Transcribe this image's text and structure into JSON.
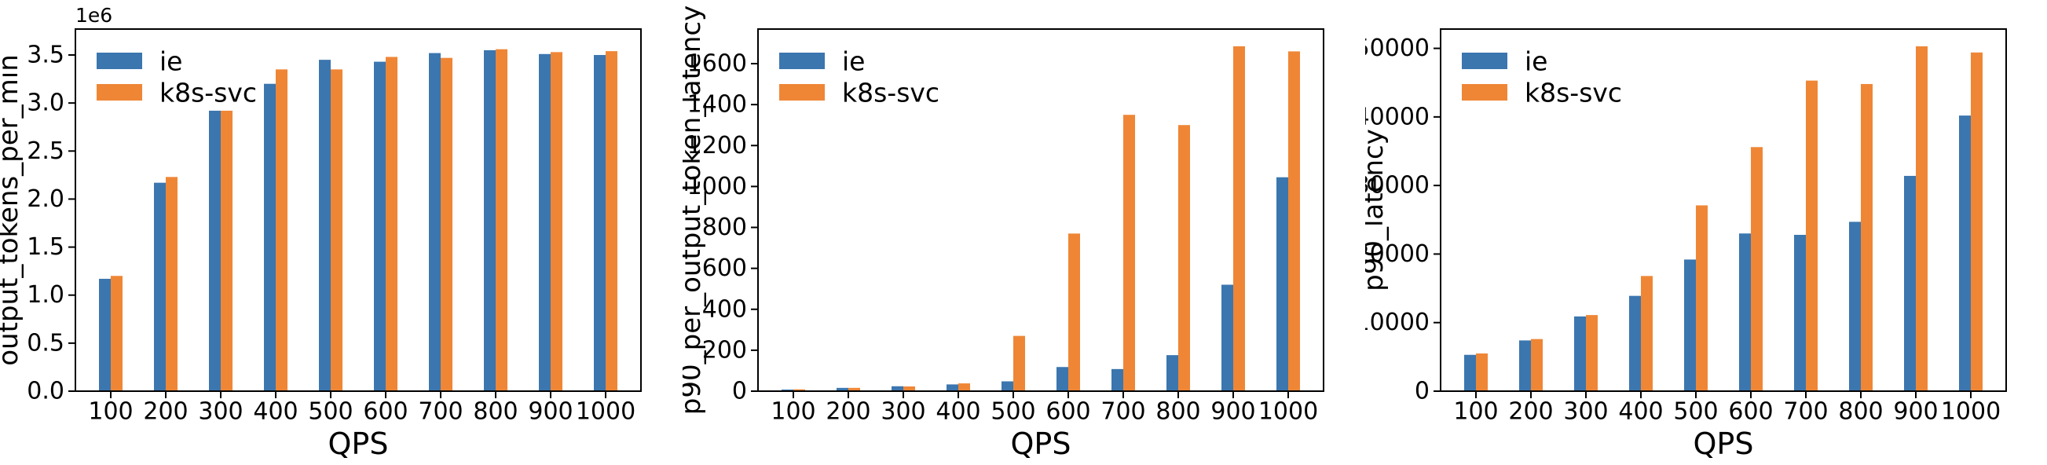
{
  "figure": {
    "background": "#ffffff",
    "text_color": "#000000",
    "spine_color": "#000000",
    "legend": {
      "entries": [
        {
          "label": "ie",
          "color": "#3b76af"
        },
        {
          "label": "k8s-svc",
          "color": "#ef8636"
        }
      ],
      "position": "upper-left",
      "frame": false
    }
  },
  "chart_data": [
    {
      "type": "bar",
      "title": "",
      "xlabel": "QPS",
      "ylabel": "output_tokens_per_min",
      "offset_text": "1e6",
      "categories": [
        "100",
        "200",
        "300",
        "400",
        "500",
        "600",
        "700",
        "800",
        "900",
        "1000"
      ],
      "series": [
        {
          "name": "ie",
          "color": "#3b76af",
          "values": [
            1170000,
            2170000,
            2920000,
            3200000,
            3450000,
            3430000,
            3520000,
            3550000,
            3510000,
            3500000
          ]
        },
        {
          "name": "k8s-svc",
          "color": "#ef8636",
          "values": [
            1200000,
            2230000,
            2920000,
            3350000,
            3350000,
            3480000,
            3470000,
            3560000,
            3530000,
            3540000
          ]
        }
      ],
      "ylim": [
        0,
        3770000
      ],
      "yticks": [
        0,
        500000,
        1000000,
        1500000,
        2000000,
        2500000,
        3000000,
        3500000
      ],
      "ytick_labels": [
        "0.0",
        "0.5",
        "1.0",
        "1.5",
        "2.0",
        "2.5",
        "3.0",
        "3.5"
      ],
      "legend_position": "upper left",
      "grid": false
    },
    {
      "type": "bar",
      "title": "",
      "xlabel": "QPS",
      "ylabel": "p90_per_output_token_latency",
      "offset_text": "",
      "categories": [
        "100",
        "200",
        "300",
        "400",
        "500",
        "600",
        "700",
        "800",
        "900",
        "1000"
      ],
      "series": [
        {
          "name": "ie",
          "color": "#3b76af",
          "values": [
            8,
            16,
            24,
            33,
            48,
            118,
            108,
            176,
            520,
            1045
          ]
        },
        {
          "name": "k8s-svc",
          "color": "#ef8636",
          "values": [
            9,
            16,
            23,
            38,
            270,
            770,
            1350,
            1300,
            1685,
            1660
          ]
        }
      ],
      "ylim": [
        0,
        1769
      ],
      "yticks": [
        0,
        200,
        400,
        600,
        800,
        1000,
        1200,
        1400,
        1600
      ],
      "ytick_labels": [
        "0",
        "200",
        "400",
        "600",
        "800",
        "1000",
        "1200",
        "1400",
        "1600"
      ],
      "legend_position": "upper left",
      "grid": false
    },
    {
      "type": "bar",
      "title": "",
      "xlabel": "QPS",
      "ylabel": "p90_latency",
      "offset_text": "",
      "categories": [
        "100",
        "200",
        "300",
        "400",
        "500",
        "600",
        "700",
        "800",
        "900",
        "1000"
      ],
      "series": [
        {
          "name": "ie",
          "color": "#3b76af",
          "values": [
            5300,
            7400,
            10900,
            13900,
            19200,
            23000,
            22800,
            24700,
            31400,
            40200
          ]
        },
        {
          "name": "k8s-svc",
          "color": "#ef8636",
          "values": [
            5500,
            7600,
            11100,
            16800,
            27100,
            35600,
            45300,
            44800,
            50300,
            49400
          ]
        }
      ],
      "ylim": [
        0,
        52815
      ],
      "yticks": [
        0,
        10000,
        20000,
        30000,
        40000,
        50000
      ],
      "ytick_labels": [
        "0",
        "10000",
        "20000",
        "30000",
        "40000",
        "50000"
      ],
      "legend_position": "upper left",
      "grid": false
    }
  ]
}
